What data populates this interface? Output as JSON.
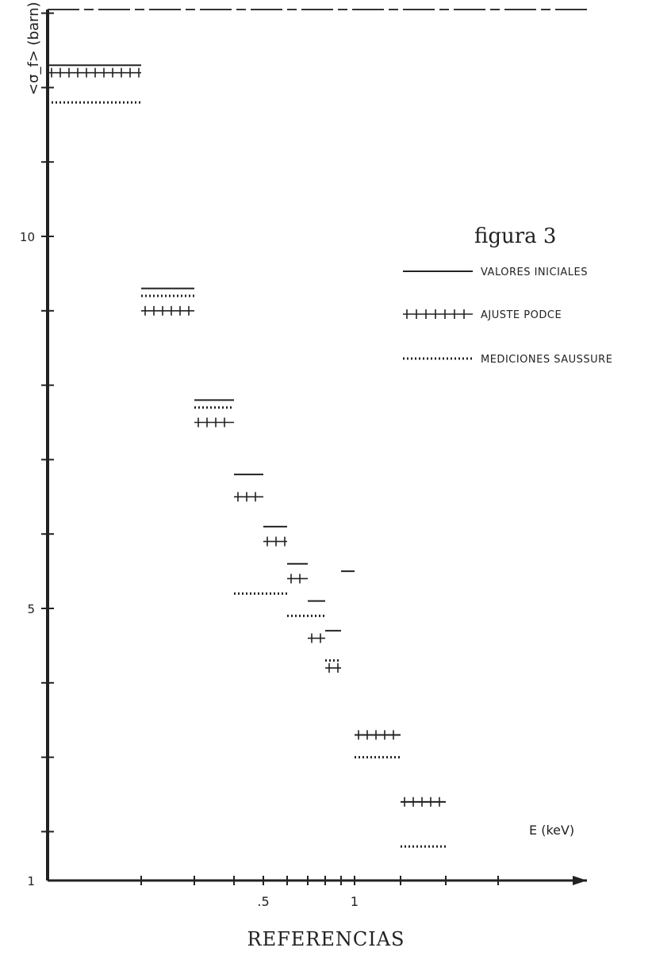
{
  "chart_data": {
    "type": "step",
    "title": "figura 3",
    "ylabel": "<σ_f> (barn)",
    "xlabel": "E (keV)",
    "x_tick_labels": [
      ".5",
      "1"
    ],
    "y_tick_labels": [
      "1",
      "5",
      "10"
    ],
    "legend": {
      "placement": "right",
      "entries": [
        {
          "style": "line",
          "label": "VALORES INICIALES"
        },
        {
          "style": "cross",
          "label": "AJUSTE PODCE"
        },
        {
          "style": "dotted",
          "label": "MEDICIONES SAUSSURE"
        }
      ]
    },
    "grid": false,
    "series": [
      {
        "name": "VALORES INICIALES",
        "values": [
          {
            "x": [
              0.02,
              0.2
            ],
            "y": 12.3
          },
          {
            "x": [
              0.2,
              0.3
            ],
            "y": 9.3
          },
          {
            "x": [
              0.3,
              0.4
            ],
            "y": 7.8
          },
          {
            "x": [
              0.4,
              0.5
            ],
            "y": 6.8
          },
          {
            "x": [
              0.5,
              0.6
            ],
            "y": 6.1
          },
          {
            "x": [
              0.6,
              0.7
            ],
            "y": 5.6
          },
          {
            "x": [
              0.7,
              0.8
            ],
            "y": 5.1
          },
          {
            "x": [
              0.8,
              0.9
            ],
            "y": 4.7
          },
          {
            "x": [
              0.9,
              1.0
            ],
            "y": 5.5
          },
          {
            "x": [
              1.0,
              1.5
            ],
            "y": 3.3
          },
          {
            "x": [
              1.5,
              2.0
            ],
            "y": 2.4
          }
        ]
      },
      {
        "name": "AJUSTE PODCE",
        "values": [
          {
            "x": [
              0.02,
              0.2
            ],
            "y": 12.2
          },
          {
            "x": [
              0.2,
              0.3
            ],
            "y": 9.0
          },
          {
            "x": [
              0.3,
              0.4
            ],
            "y": 7.5
          },
          {
            "x": [
              0.4,
              0.5
            ],
            "y": 6.5
          },
          {
            "x": [
              0.5,
              0.6
            ],
            "y": 5.9
          },
          {
            "x": [
              0.6,
              0.7
            ],
            "y": 5.4
          },
          {
            "x": [
              0.7,
              0.8
            ],
            "y": 4.6
          },
          {
            "x": [
              0.8,
              0.9
            ],
            "y": 4.2
          },
          {
            "x": [
              1.0,
              1.5
            ],
            "y": 3.3
          },
          {
            "x": [
              1.5,
              2.0
            ],
            "y": 2.4
          }
        ]
      },
      {
        "name": "MEDICIONES SAUSSURE",
        "values": [
          {
            "x": [
              0.02,
              0.2
            ],
            "y": 11.8
          },
          {
            "x": [
              0.2,
              0.3
            ],
            "y": 9.2
          },
          {
            "x": [
              0.3,
              0.4
            ],
            "y": 7.7
          },
          {
            "x": [
              0.4,
              0.6
            ],
            "y": 5.2
          },
          {
            "x": [
              0.6,
              0.8
            ],
            "y": 4.9
          },
          {
            "x": [
              0.8,
              0.9
            ],
            "y": 4.3
          },
          {
            "x": [
              1.0,
              1.5
            ],
            "y": 3.0
          },
          {
            "x": [
              1.5,
              2.0
            ],
            "y": 1.8
          }
        ]
      }
    ]
  },
  "caption": "REFERENCIAS"
}
